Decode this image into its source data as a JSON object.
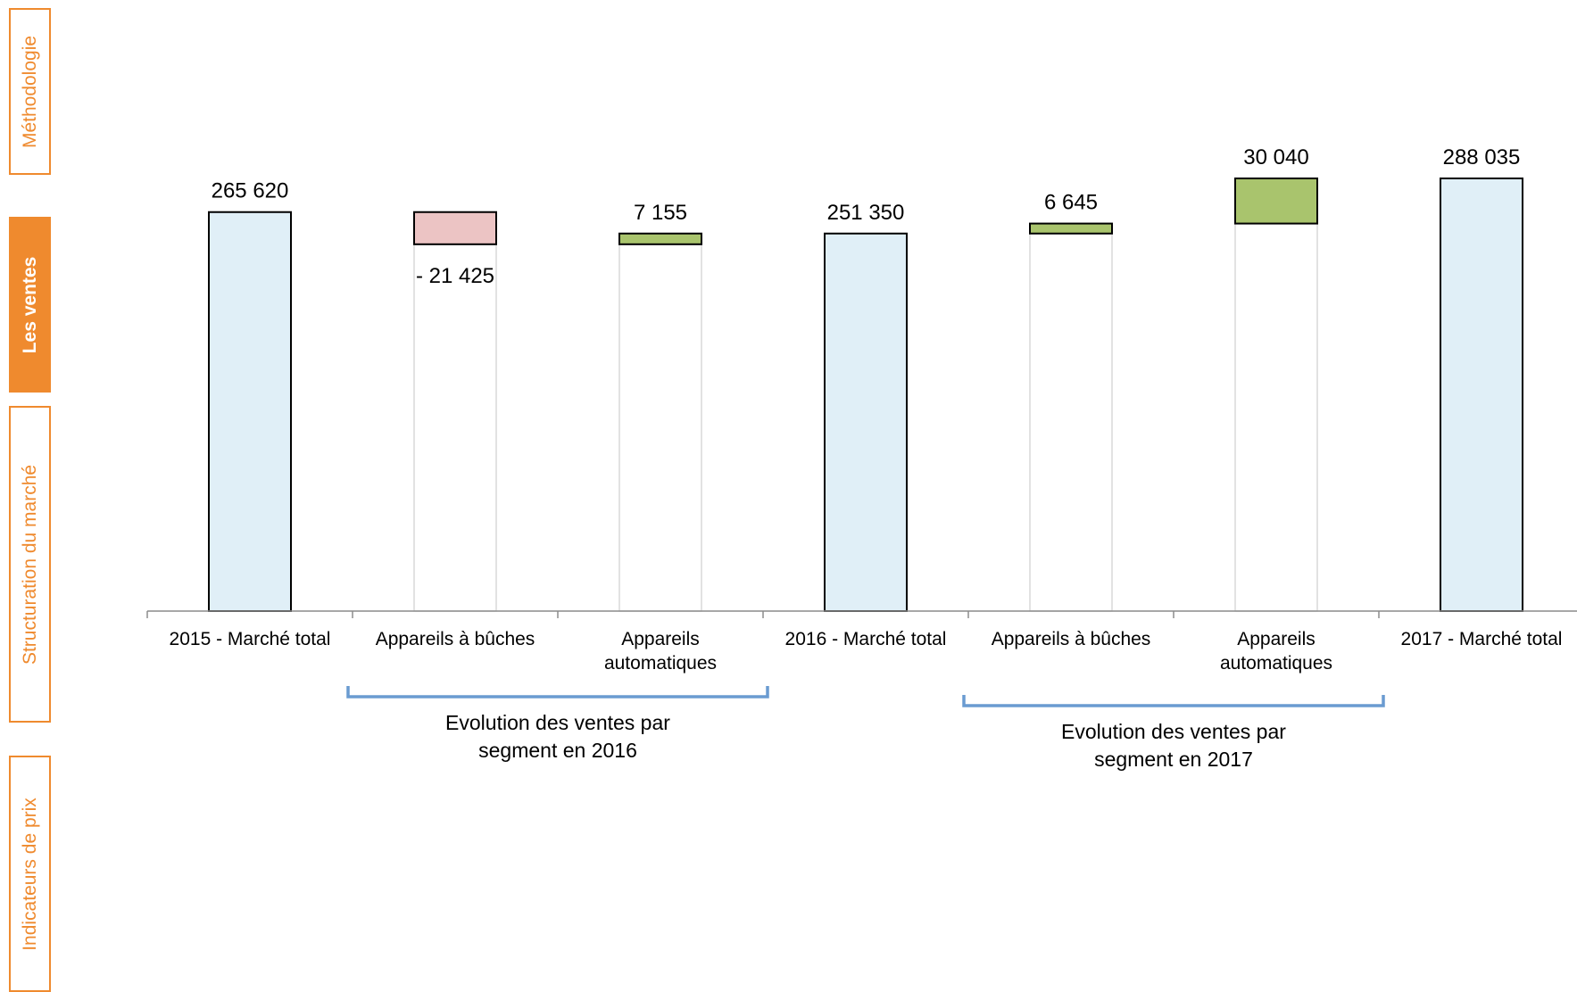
{
  "sidebar": {
    "accent_color": "#ef8a2e",
    "tabs": [
      {
        "label": "Méthodologie",
        "active": false
      },
      {
        "label": "Les ventes",
        "active": true
      },
      {
        "label": "Structuration du marché",
        "active": false
      },
      {
        "label": "Indicateurs de prix",
        "active": false
      }
    ]
  },
  "chart_data": {
    "type": "bar",
    "subtype": "waterfall",
    "categories": [
      [
        "2015 - Marché total"
      ],
      [
        "Appareils à bûches"
      ],
      [
        "Appareils",
        "automatiques"
      ],
      [
        "2016 - Marché total"
      ],
      [
        "Appareils à bûches"
      ],
      [
        "Appareils",
        "automatiques"
      ],
      [
        "2017 - Marché total"
      ]
    ],
    "values": [
      265620,
      -21425,
      7155,
      251350,
      6645,
      30040,
      288035
    ],
    "kinds": [
      "total",
      "delta",
      "delta",
      "total",
      "delta",
      "delta",
      "total"
    ],
    "value_labels": [
      "265 620",
      "- 21 425",
      "7 155",
      "251 350",
      "6 645",
      "30 040",
      "288 035"
    ],
    "colors": {
      "total": "#e0eff7",
      "increase": "#a9c46d",
      "decrease": "#ecc4c4",
      "base_outline": "#d9d9d9",
      "bracket": "#6a9bd1"
    },
    "ylim": [
      0,
      300000
    ],
    "grid": false,
    "legend": "none",
    "title": "",
    "xlabel": "",
    "ylabel": "",
    "annotations": [
      {
        "lines": [
          "Evolution des ventes par",
          "segment en 2016"
        ],
        "from_category": 1,
        "to_category": 2
      },
      {
        "lines": [
          "Evolution des ventes par",
          "segment en 2017"
        ],
        "from_category": 4,
        "to_category": 5
      }
    ]
  }
}
